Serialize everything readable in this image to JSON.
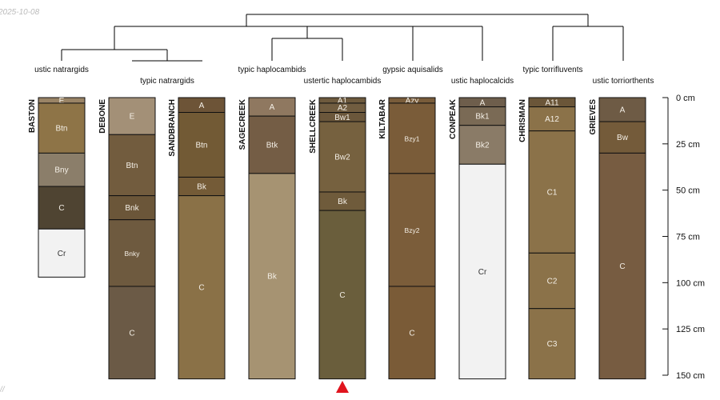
{
  "meta": {
    "date_stamp": "2025-10-08",
    "corner_mark": "//"
  },
  "chart_data": {
    "type": "soil-profile-sketch",
    "depth_unit": "cm",
    "depth_max": 150,
    "depth_ticks": [
      0,
      25,
      50,
      75,
      100,
      125,
      150
    ],
    "depth_tick_labels": [
      "0 cm",
      "25 cm",
      "50 cm",
      "75 cm",
      "100 cm",
      "125 cm",
      "150 cm"
    ],
    "marker": {
      "profile": "SHELLCREEK",
      "shape": "triangle",
      "color": "#e0141e"
    },
    "profiles": [
      {
        "name": "BASTON",
        "taxon": "ustic natrargids",
        "horizons": [
          {
            "name": "E",
            "top": 0,
            "bottom": 3,
            "color": "#9a8466"
          },
          {
            "name": "Btn",
            "top": 3,
            "bottom": 30,
            "color": "#8e7447"
          },
          {
            "name": "Bny",
            "top": 30,
            "bottom": 48,
            "color": "#8b7e6a"
          },
          {
            "name": "C",
            "top": 48,
            "bottom": 71,
            "color": "#4f4432"
          },
          {
            "name": "Cr",
            "top": 71,
            "bottom": 97,
            "color": "#f2f2f2"
          }
        ]
      },
      {
        "name": "DEBONE",
        "taxon": "typic natrargids",
        "horizons": [
          {
            "name": "E",
            "top": 0,
            "bottom": 20,
            "color": "#a39077"
          },
          {
            "name": "Btn",
            "top": 20,
            "bottom": 53,
            "color": "#725c3e"
          },
          {
            "name": "Bnk",
            "top": 53,
            "bottom": 66,
            "color": "#6b5639"
          },
          {
            "name": "Bnky",
            "top": 66,
            "bottom": 102,
            "color": "#6e5a3f"
          },
          {
            "name": "C",
            "top": 102,
            "bottom": 152,
            "color": "#6b5a46"
          }
        ]
      },
      {
        "name": "SANDBRANCH",
        "taxon": "typic natrargids",
        "horizons": [
          {
            "name": "A",
            "top": 0,
            "bottom": 8,
            "color": "#6d5437"
          },
          {
            "name": "Btn",
            "top": 8,
            "bottom": 43,
            "color": "#725a35"
          },
          {
            "name": "Bk",
            "top": 43,
            "bottom": 53,
            "color": "#745b37"
          },
          {
            "name": "C",
            "top": 53,
            "bottom": 152,
            "color": "#8a7147"
          }
        ]
      },
      {
        "name": "SAGECREEK",
        "taxon": "typic haplocambids",
        "horizons": [
          {
            "name": "A",
            "top": 0,
            "bottom": 10,
            "color": "#8f7860"
          },
          {
            "name": "Btk",
            "top": 10,
            "bottom": 41,
            "color": "#745d45"
          },
          {
            "name": "Bk",
            "top": 41,
            "bottom": 152,
            "color": "#a69372"
          }
        ]
      },
      {
        "name": "SHELLCREEK",
        "taxon": "ustertic haplocambids",
        "horizons": [
          {
            "name": "A1",
            "top": 0,
            "bottom": 3,
            "color": "#6e5a3d"
          },
          {
            "name": "A2",
            "top": 3,
            "bottom": 8,
            "color": "#715d40"
          },
          {
            "name": "Bw1",
            "top": 8,
            "bottom": 13,
            "color": "#6b573b"
          },
          {
            "name": "Bw2",
            "top": 13,
            "bottom": 51,
            "color": "#76613f"
          },
          {
            "name": "Bk",
            "top": 51,
            "bottom": 61,
            "color": "#6f5b3b"
          },
          {
            "name": "C",
            "top": 61,
            "bottom": 152,
            "color": "#6a5e3c"
          }
        ]
      },
      {
        "name": "KILTABAR",
        "taxon": "gypsic aquisalids",
        "horizons": [
          {
            "name": "Azy",
            "top": 0,
            "bottom": 3,
            "color": "#795c3a"
          },
          {
            "name": "Bzy1",
            "top": 3,
            "bottom": 41,
            "color": "#7a5c39"
          },
          {
            "name": "Bzy2",
            "top": 41,
            "bottom": 102,
            "color": "#7b5d3a"
          },
          {
            "name": "C",
            "top": 102,
            "bottom": 152,
            "color": "#7a5b37"
          }
        ]
      },
      {
        "name": "CONPEAK",
        "taxon": "ustic haplocalcids",
        "horizons": [
          {
            "name": "A",
            "top": 0,
            "bottom": 5,
            "color": "#6e5e4c"
          },
          {
            "name": "Bk1",
            "top": 5,
            "bottom": 15,
            "color": "#7a6a55"
          },
          {
            "name": "Bk2",
            "top": 15,
            "bottom": 36,
            "color": "#8a7b67"
          },
          {
            "name": "Cr",
            "top": 36,
            "bottom": 152,
            "color": "#f2f2f2"
          }
        ]
      },
      {
        "name": "CHRISMAN",
        "taxon": "typic torrifluvents",
        "horizons": [
          {
            "name": "A11",
            "top": 0,
            "bottom": 5,
            "color": "#6b5639"
          },
          {
            "name": "A12",
            "top": 5,
            "bottom": 18,
            "color": "#8b7249"
          },
          {
            "name": "C1",
            "top": 18,
            "bottom": 84,
            "color": "#8b7249"
          },
          {
            "name": "C2",
            "top": 84,
            "bottom": 114,
            "color": "#8b7249"
          },
          {
            "name": "C3",
            "top": 114,
            "bottom": 152,
            "color": "#8b7249"
          }
        ]
      },
      {
        "name": "GRIEVES",
        "taxon": "ustic torriorthents",
        "horizons": [
          {
            "name": "A",
            "top": 0,
            "bottom": 13,
            "color": "#6e5b45"
          },
          {
            "name": "Bw",
            "top": 13,
            "bottom": 30,
            "color": "#745b3a"
          },
          {
            "name": "C",
            "top": 30,
            "bottom": 152,
            "color": "#775c41"
          }
        ]
      }
    ]
  }
}
